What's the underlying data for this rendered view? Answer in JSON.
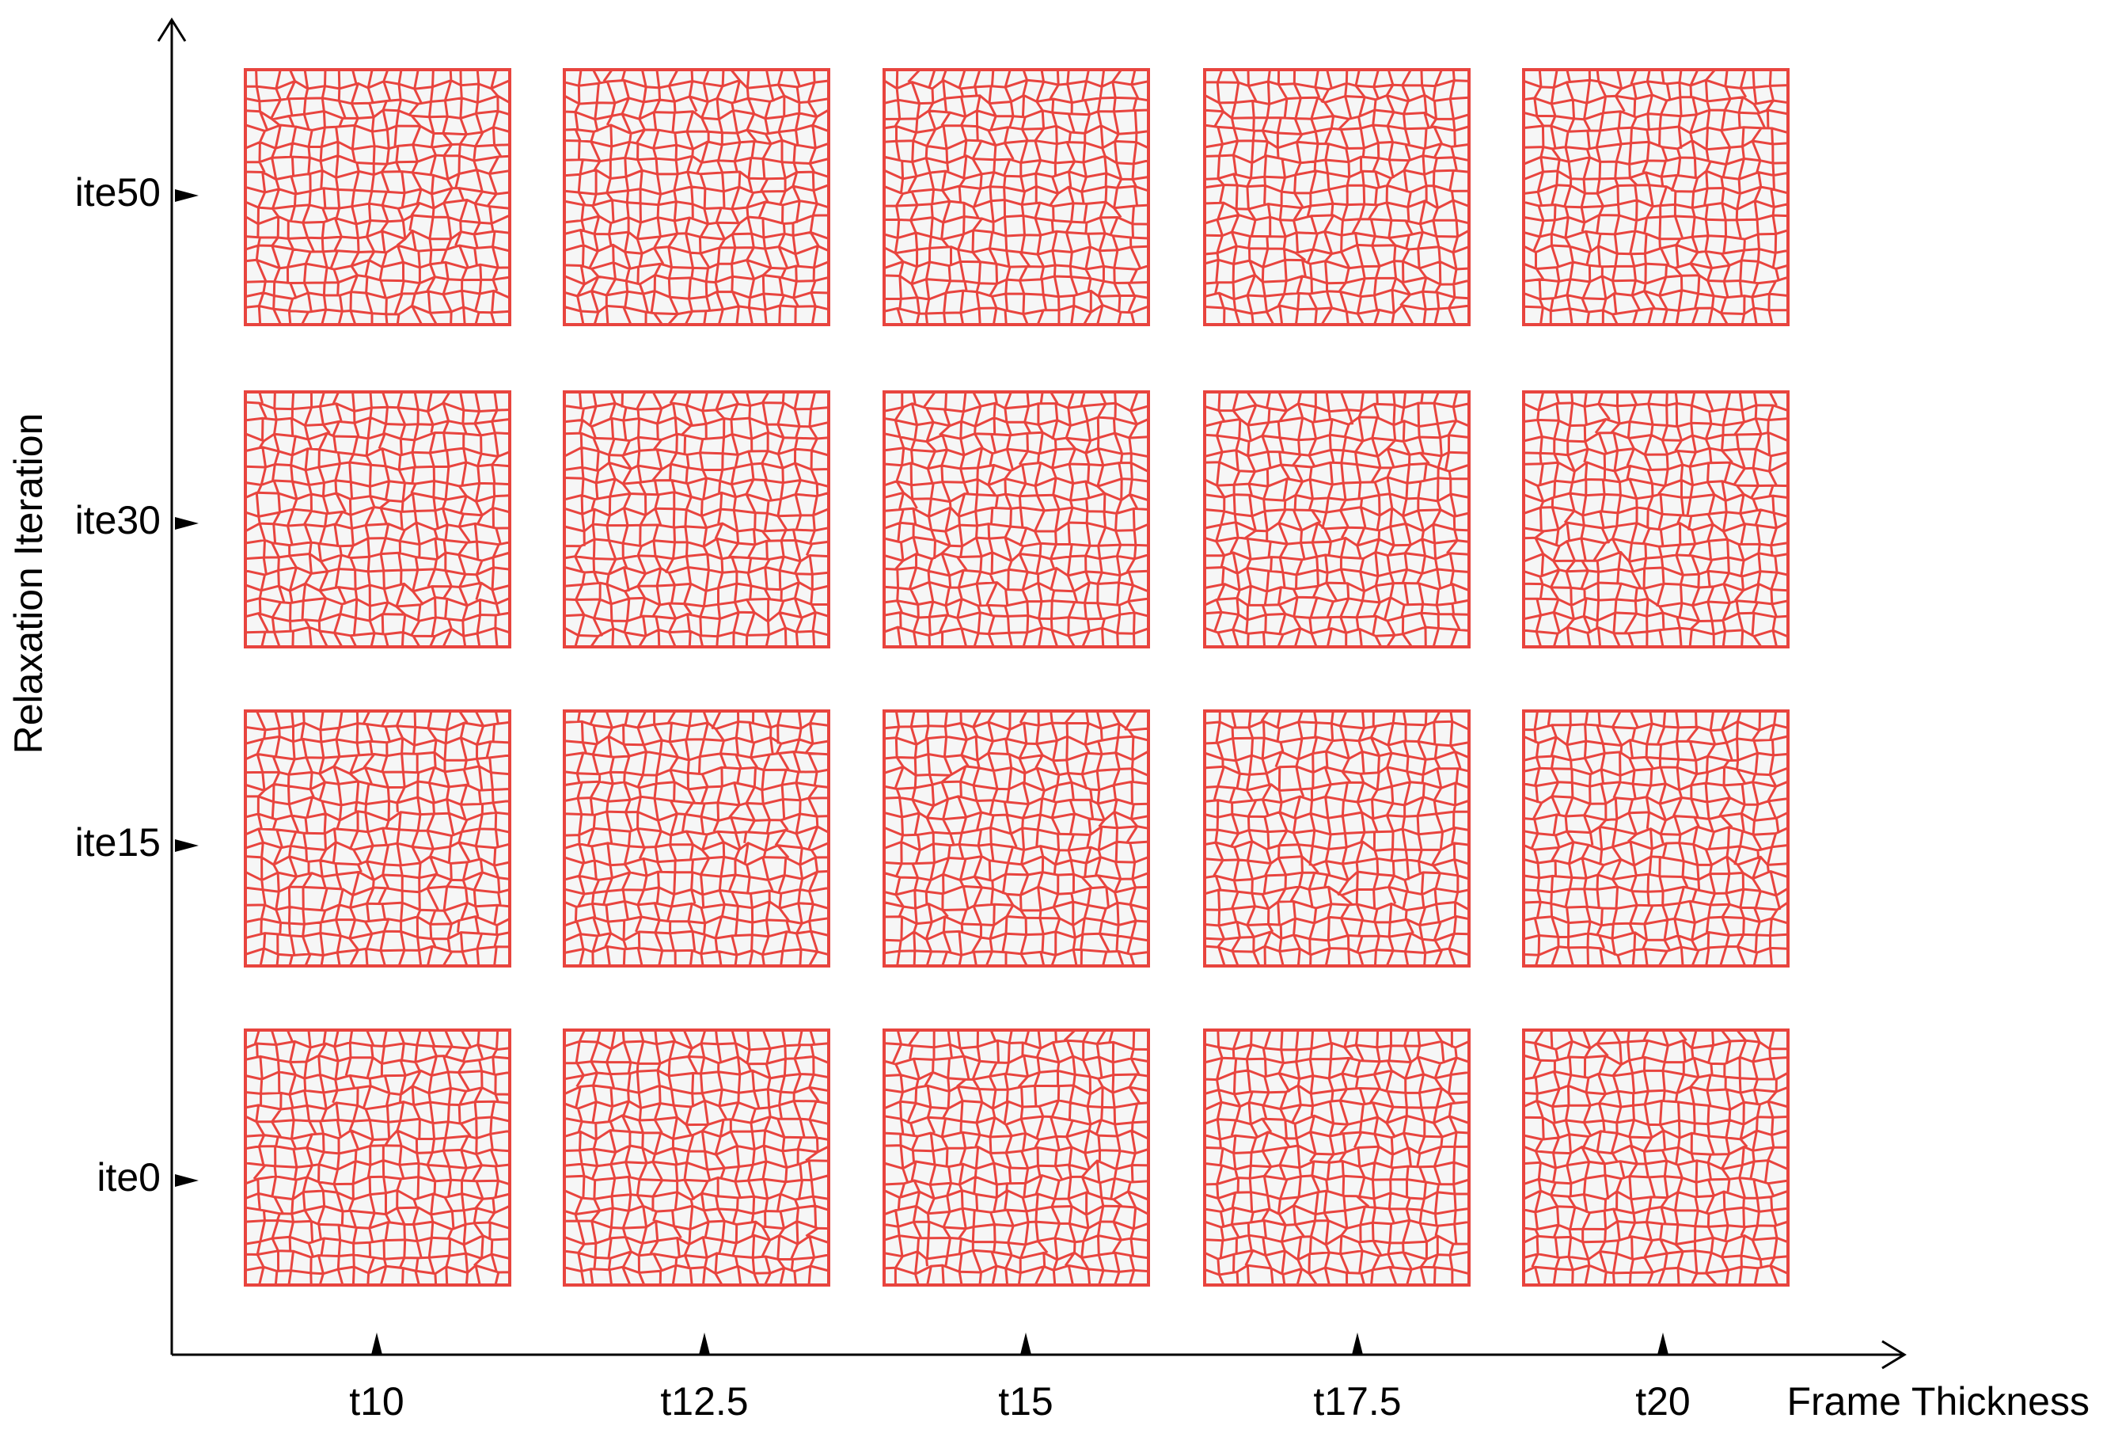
{
  "x_axis": {
    "label": "Frame Thickness",
    "ticks": [
      "t10",
      "t12.5",
      "t15",
      "t17.5",
      "t20"
    ]
  },
  "y_axis": {
    "label": "Relaxation Iteration",
    "ticks": [
      "ite50",
      "ite30",
      "ite15",
      "ite0"
    ]
  }
}
